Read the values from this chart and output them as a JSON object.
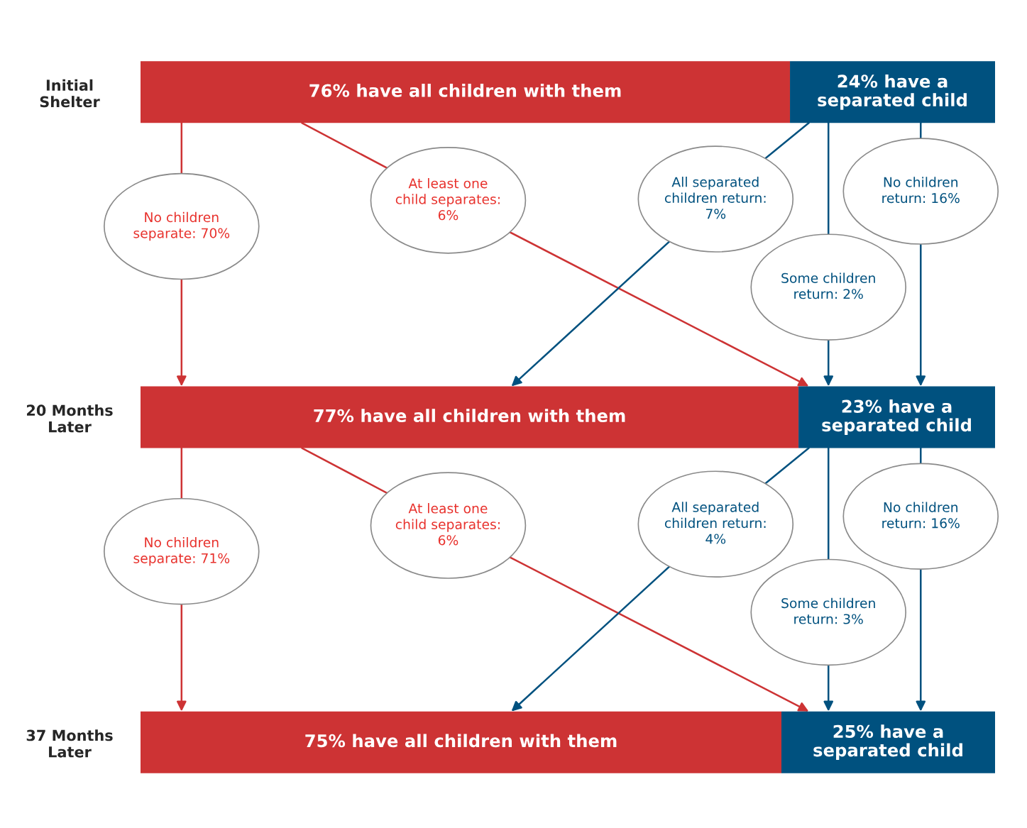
{
  "chart_data": {
    "type": "bar",
    "orientation": "horizontal",
    "stacked": true,
    "tick_labels": "y",
    "categories": [
      "Initial\nShelter",
      "20 Months\nLater",
      "37 Months\nLater"
    ],
    "series": [
      {
        "color": "#cd3334",
        "values": [
          76,
          77,
          75
        ],
        "value_labels": [
          "76% have all children with them",
          "77% have all children with them",
          "75% have all children with them"
        ]
      },
      {
        "color": "#00517f",
        "values": [
          24,
          23,
          25
        ],
        "value_labels": [
          "24% have a\nseparated child",
          "23% have a\nseparated child",
          "25% have a\nseparated child"
        ]
      }
    ],
    "annotations": [
      "No children\nseparate: 70%",
      "At least one\nchild separates:\n6%",
      "All separated\nchildren return:\n7%",
      "No children\nreturn: 16%",
      "Some children\nreturn: 2%",
      "No children\nseparate: 71%",
      "At least one\nchild separates:\n6%",
      "All separated\nchildren return:\n4%",
      "No children\nreturn: 16%",
      "Some children\nreturn: 3%"
    ]
  }
}
